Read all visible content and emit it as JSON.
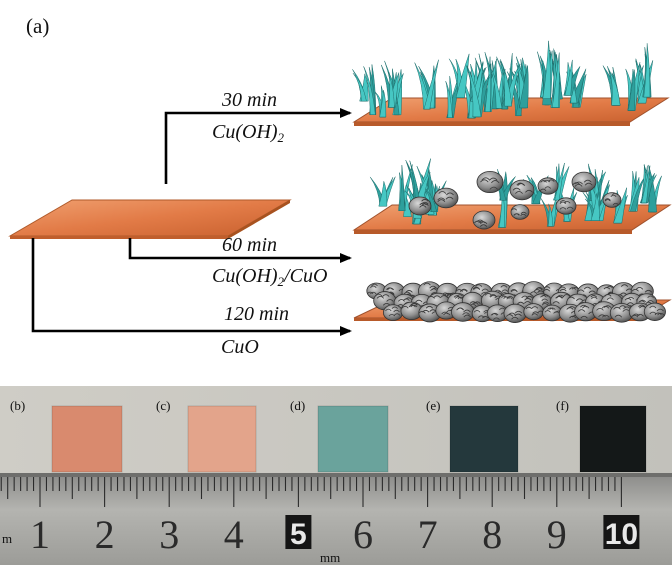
{
  "figure": {
    "panel_a_label": "(a)",
    "routes": [
      {
        "time": "30 min",
        "product": "Cu(OH)",
        "product_sub": "2",
        "product_suffix": ""
      },
      {
        "time": "60 min",
        "product": "Cu(OH)",
        "product_sub": "2",
        "product_suffix": "/CuO"
      },
      {
        "time": "120 min",
        "product": "CuO",
        "product_sub": "",
        "product_suffix": ""
      }
    ],
    "samples": [
      {
        "label": "(b)",
        "color": "#d98a6e"
      },
      {
        "label": "(c)",
        "color": "#e3a48b"
      },
      {
        "label": "(d)",
        "color": "#6aa39c"
      },
      {
        "label": "(e)",
        "color": "#24383c"
      },
      {
        "label": "(f)",
        "color": "#141818"
      }
    ],
    "ruler": {
      "unit_left": "m",
      "unit_mid": "mm",
      "numbers": [
        "1",
        "2",
        "3",
        "4",
        "5",
        "6",
        "7",
        "8",
        "9",
        "10"
      ],
      "boxed_numbers": [
        "5",
        "10"
      ]
    },
    "colors": {
      "substrate": "#e07a45",
      "nanowire": "#46c7c3",
      "cuo_flower": "#8c8c8c"
    }
  }
}
